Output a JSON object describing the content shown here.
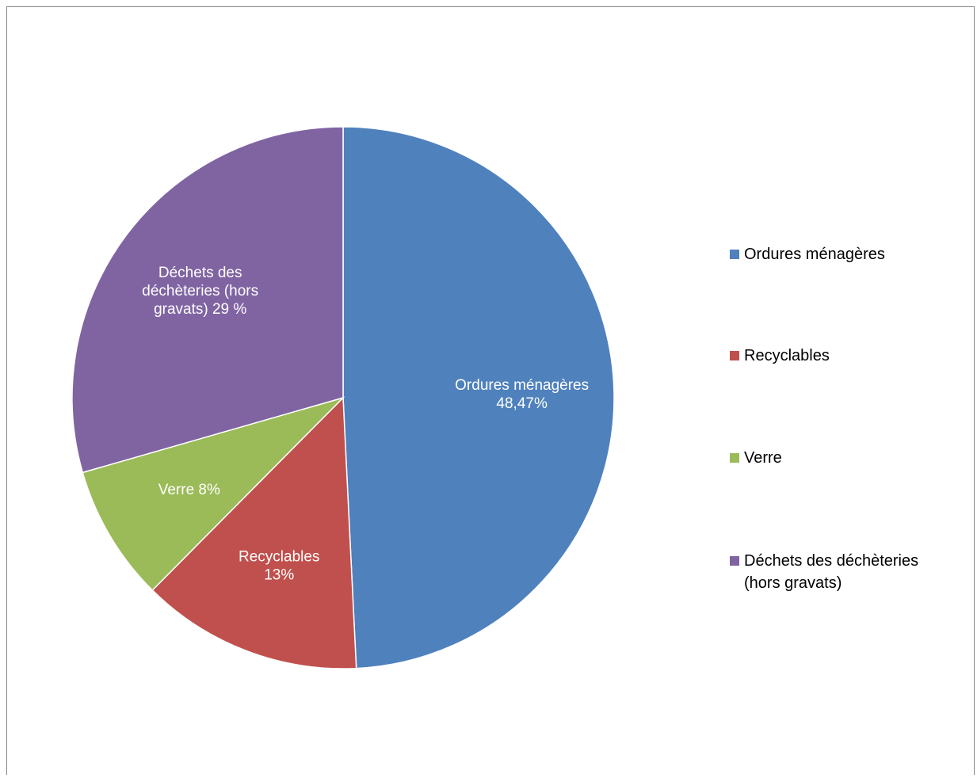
{
  "chart_data": {
    "type": "pie",
    "slices": [
      {
        "name": "Ordures ménagères",
        "value": 48.47,
        "color": "#4F81BD",
        "label_lines": [
          "Ordures ménagères",
          "48,47%"
        ]
      },
      {
        "name": "Recyclables",
        "value": 13,
        "color": "#C0504D",
        "label_lines": [
          "Recyclables",
          "13%"
        ]
      },
      {
        "name": "Verre",
        "value": 8,
        "color": "#9BBB59",
        "label_lines": [
          "Verre  8%"
        ]
      },
      {
        "name": "Déchets des déchèteries (hors gravats)",
        "value": 29,
        "color": "#8064A2",
        "label_lines": [
          "Déchets des",
          "déchèteries (hors",
          "gravats)  29 %"
        ]
      }
    ],
    "legend": {
      "position": "right",
      "items": [
        {
          "label": "Ordures ménagères",
          "color": "#4F81BD"
        },
        {
          "label": "Recyclables",
          "color": "#C0504D"
        },
        {
          "label": "Verre",
          "color": "#9BBB59"
        },
        {
          "label": "Déchets des déchèteries (hors gravats)",
          "color": "#8064A2"
        }
      ]
    },
    "start_angle": "12 o'clock, clockwise"
  }
}
